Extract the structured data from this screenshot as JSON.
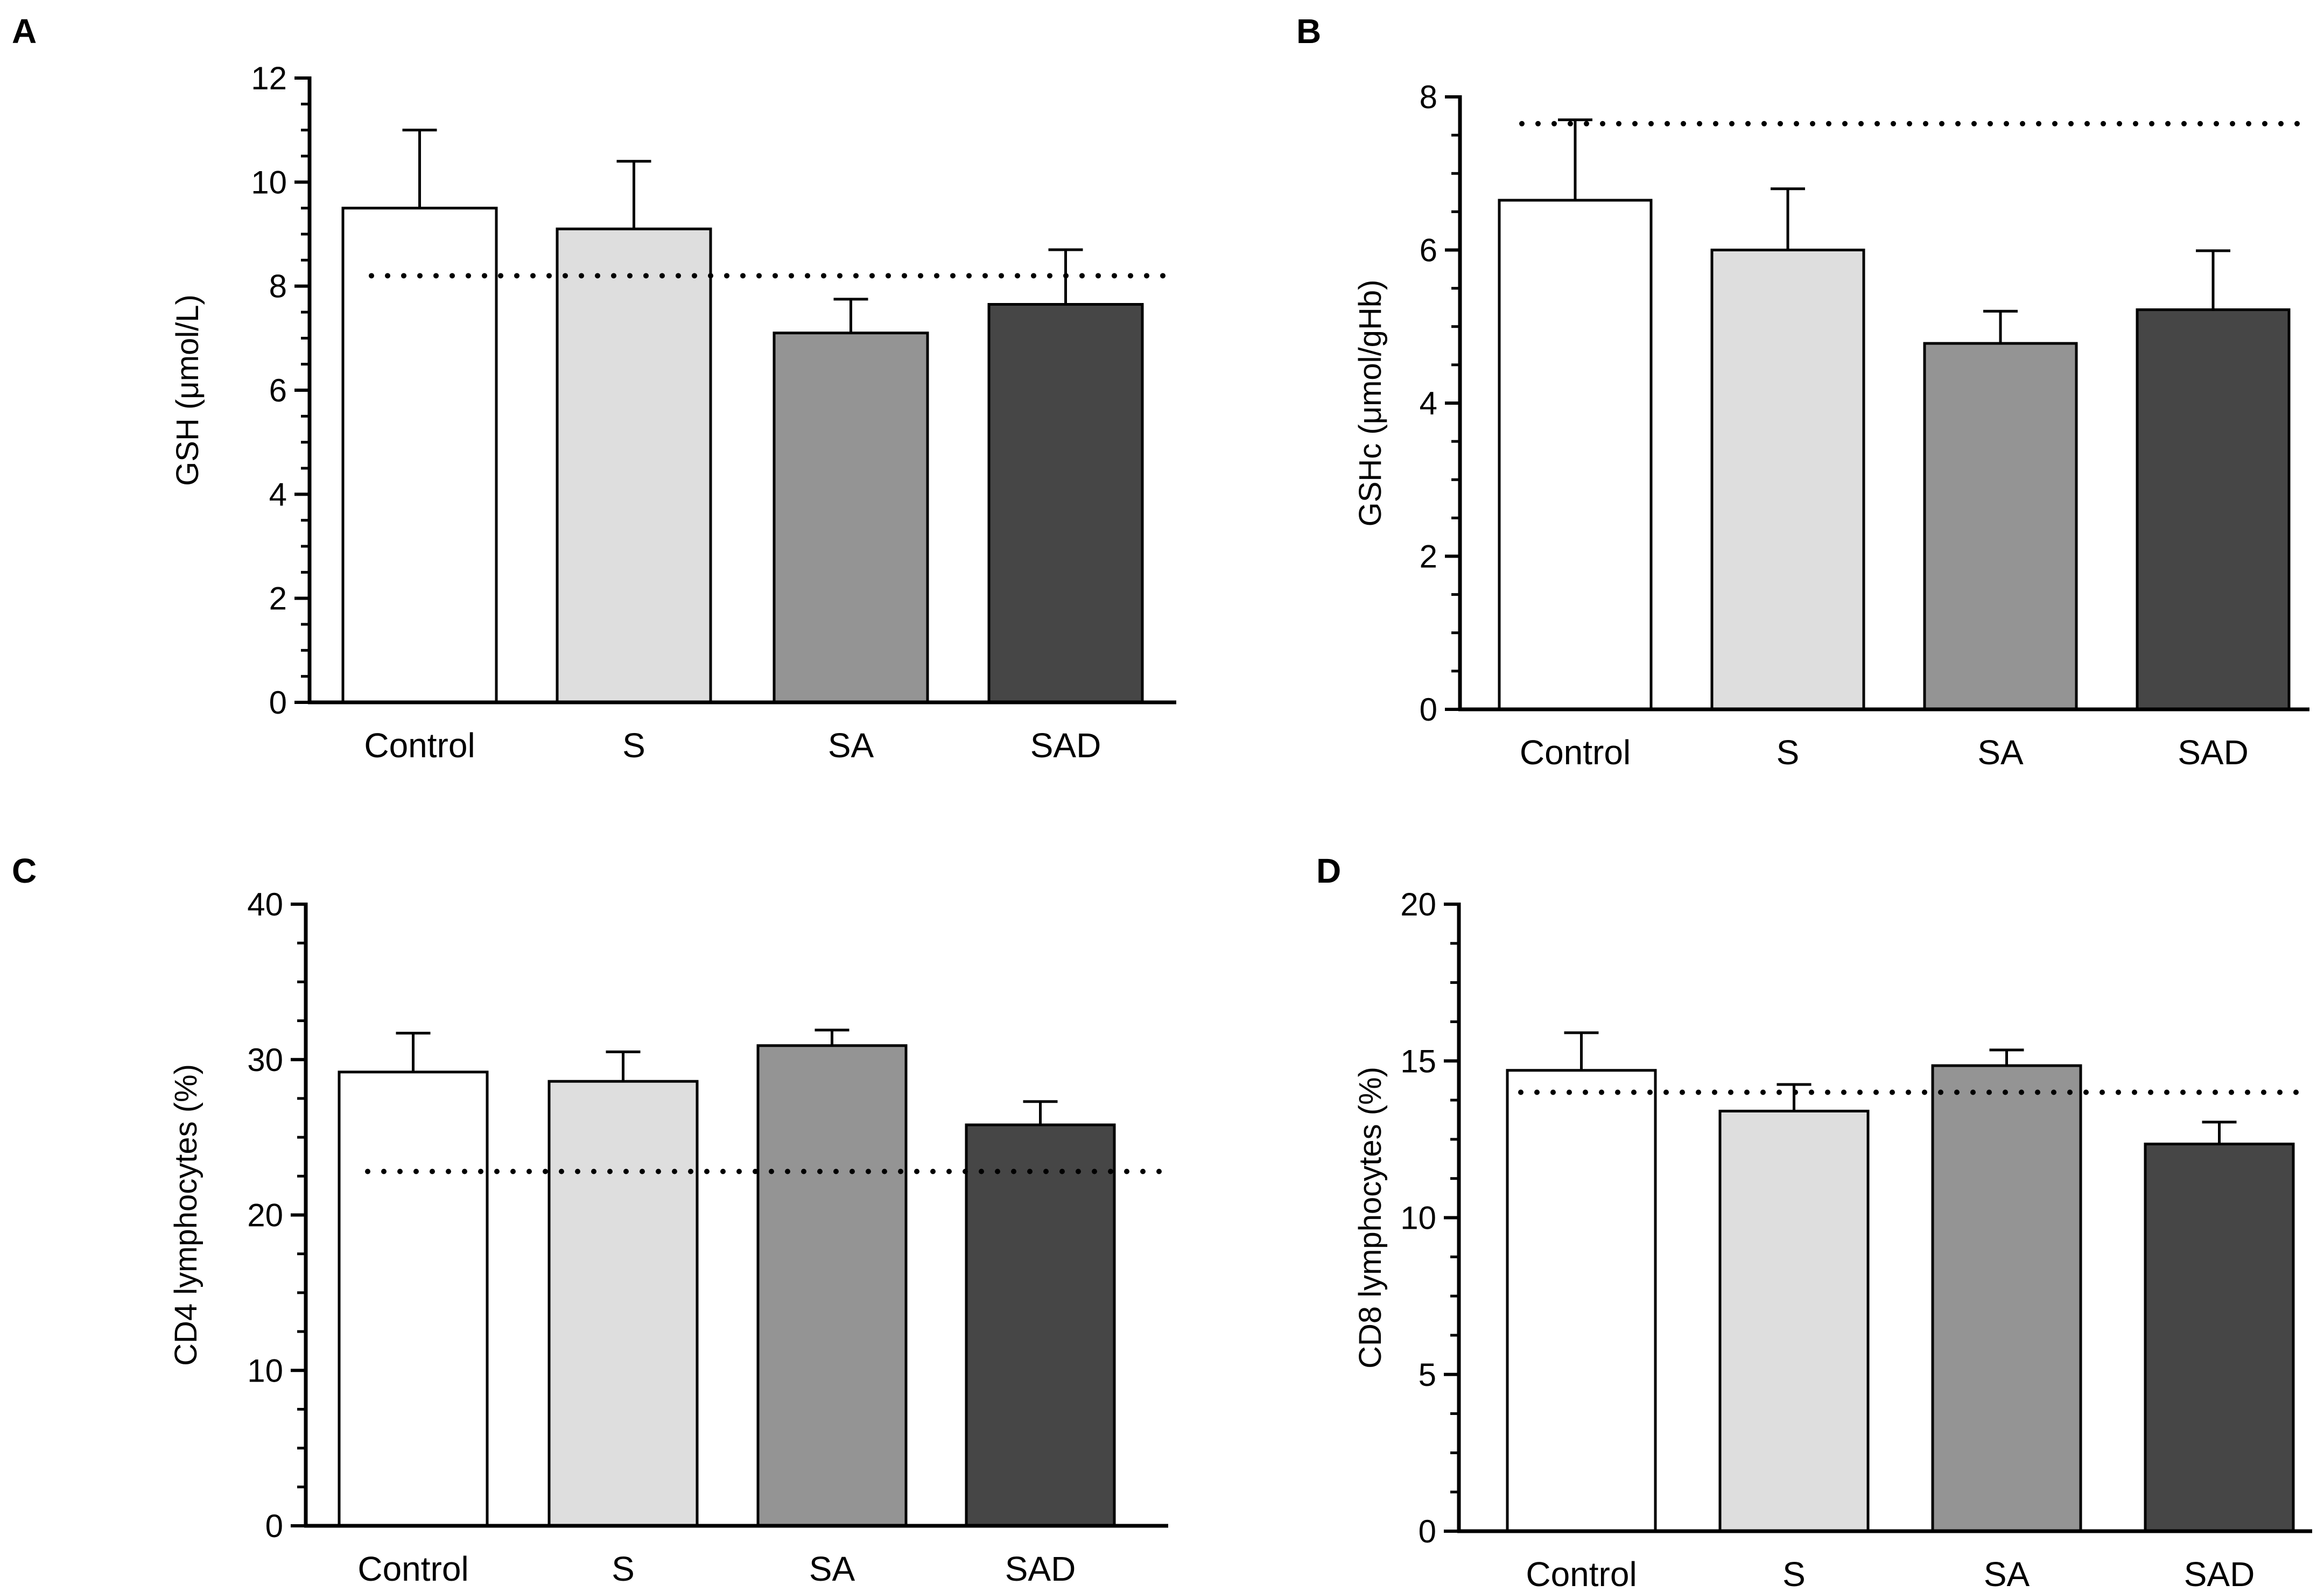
{
  "figure": {
    "panels": [
      {
        "id": "A",
        "letter": "A"
      },
      {
        "id": "B",
        "letter": "B"
      },
      {
        "id": "C",
        "letter": "C"
      },
      {
        "id": "D",
        "letter": "D"
      }
    ]
  },
  "colors": {
    "Control": "#ffffff",
    "S": "#dedede",
    "SA": "#949494",
    "SAD": "#464646",
    "outline": "#000000",
    "reference_line": "#000000"
  },
  "chart_data": [
    {
      "panel": "A",
      "type": "bar",
      "title": "",
      "xlabel": "",
      "ylabel": "GSH (μmol/L)",
      "categories": [
        "Control",
        "S",
        "SA",
        "SAD"
      ],
      "values": [
        9.5,
        9.1,
        7.1,
        7.65
      ],
      "error_bars": [
        1.5,
        1.3,
        0.65,
        1.05
      ],
      "reference_line": 8.2,
      "ylim": [
        0,
        12
      ],
      "yticks": [
        0,
        2,
        4,
        6,
        8,
        10,
        12
      ],
      "ytick_labels": [
        "0",
        "2",
        "4",
        "6",
        "8",
        "10",
        "12"
      ],
      "minor_ticks_per_major": 4,
      "grid": false
    },
    {
      "panel": "B",
      "type": "bar",
      "title": "",
      "xlabel": "",
      "ylabel": "GSHc (μmol/gHb)",
      "categories": [
        "Control",
        "S",
        "SA",
        "SAD"
      ],
      "values": [
        6.65,
        6.0,
        4.78,
        5.22
      ],
      "error_bars": [
        1.05,
        0.8,
        0.42,
        0.77
      ],
      "reference_line": 7.65,
      "ylim": [
        0,
        8
      ],
      "yticks": [
        0,
        2,
        4,
        6,
        8
      ],
      "ytick_labels": [
        "0",
        "2",
        "4",
        "6",
        "8"
      ],
      "minor_ticks_per_major": 4,
      "grid": false
    },
    {
      "panel": "C",
      "type": "bar",
      "title": "",
      "xlabel": "",
      "ylabel": "CD4 lymphocytes (%)",
      "categories": [
        "Control",
        "S",
        "SA",
        "SAD"
      ],
      "values": [
        29.2,
        28.6,
        30.9,
        25.8
      ],
      "error_bars": [
        2.5,
        1.9,
        1.0,
        1.5
      ],
      "reference_line": 22.8,
      "ylim": [
        0,
        40
      ],
      "yticks": [
        0,
        10,
        20,
        30,
        40
      ],
      "ytick_labels": [
        "0",
        "10",
        "20",
        "30",
        "40"
      ],
      "minor_ticks_per_major": 4,
      "grid": false
    },
    {
      "panel": "D",
      "type": "bar",
      "title": "",
      "xlabel": "",
      "ylabel": "CD8 lymphocytes (%)",
      "categories": [
        "Control",
        "S",
        "SA",
        "SAD"
      ],
      "values": [
        14.7,
        13.4,
        14.85,
        12.35
      ],
      "error_bars": [
        1.2,
        0.85,
        0.5,
        0.7
      ],
      "reference_line": 14.0,
      "ylim": [
        0,
        20
      ],
      "yticks": [
        0,
        5,
        10,
        15,
        20
      ],
      "ytick_labels": [
        "0",
        "5",
        "10",
        "15",
        "20"
      ],
      "minor_ticks_per_major": 4,
      "grid": false
    }
  ]
}
